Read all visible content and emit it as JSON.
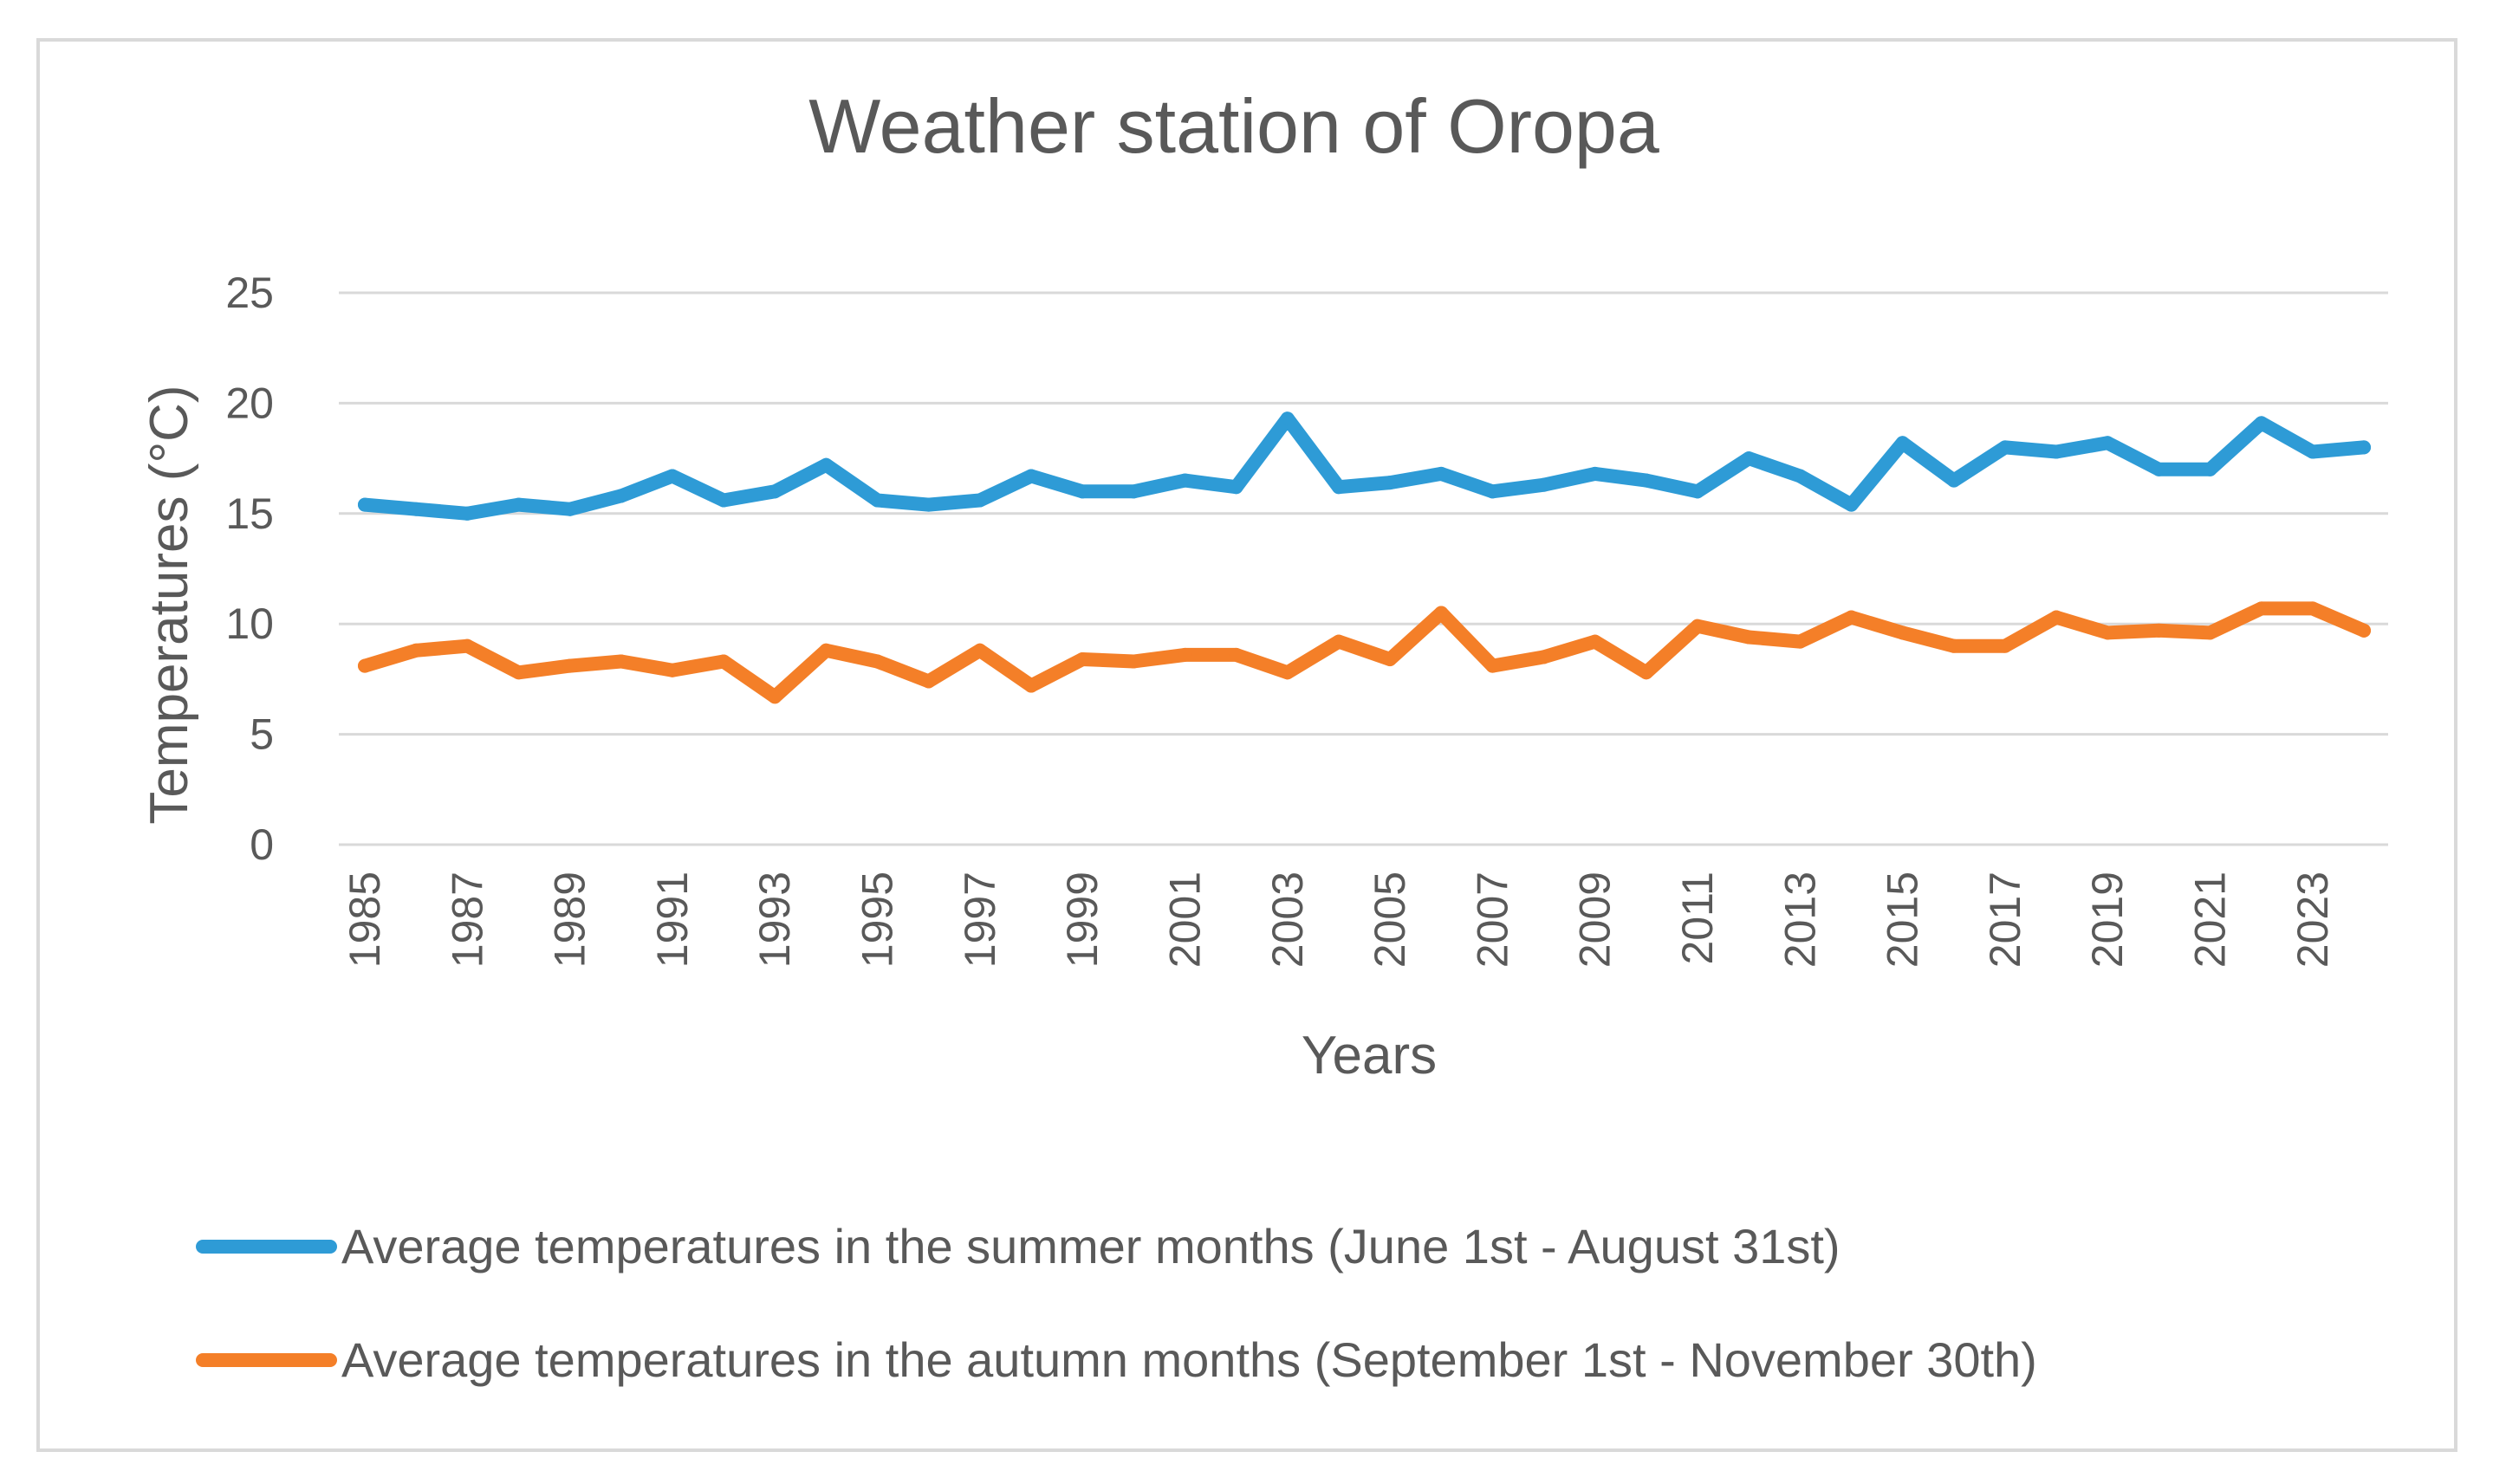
{
  "chart_data": {
    "type": "line",
    "title": "Weather station of Oropa",
    "xlabel": "Years",
    "ylabel": "Temperatures (°C)",
    "ylim": [
      0,
      25
    ],
    "yticks": [
      0,
      5,
      10,
      15,
      20,
      25
    ],
    "grid": true,
    "legend_position": "bottom",
    "x": [
      1985,
      1986,
      1987,
      1988,
      1989,
      1990,
      1991,
      1992,
      1993,
      1994,
      1995,
      1996,
      1997,
      1998,
      1999,
      2000,
      2001,
      2002,
      2003,
      2004,
      2005,
      2006,
      2007,
      2008,
      2009,
      2010,
      2011,
      2012,
      2013,
      2014,
      2015,
      2016,
      2017,
      2018,
      2019,
      2020,
      2021,
      2022,
      2023,
      2024
    ],
    "xtick_labels": [
      "1985",
      "1987",
      "1989",
      "1991",
      "1993",
      "1995",
      "1997",
      "1999",
      "2001",
      "2003",
      "2005",
      "2007",
      "2009",
      "2011",
      "2013",
      "2015",
      "2017",
      "2019",
      "2021",
      "2023"
    ],
    "series": [
      {
        "name": "Average temperatures in the summer months (June 1st - August 31st)",
        "color": "#2e9bd6",
        "values": [
          15.4,
          15.2,
          15.0,
          15.4,
          15.2,
          15.8,
          16.7,
          15.6,
          16.0,
          17.2,
          15.6,
          15.4,
          15.6,
          16.7,
          16.0,
          16.0,
          16.5,
          16.2,
          19.3,
          16.2,
          16.4,
          16.8,
          16.0,
          16.3,
          16.8,
          16.5,
          16.0,
          17.5,
          16.7,
          15.4,
          18.2,
          16.5,
          18.0,
          17.8,
          18.2,
          17.0,
          17.0,
          19.1,
          17.8,
          18.0
        ]
      },
      {
        "name": "Average temperatures in the autumn months (September 1st - November 30th)",
        "color": "#f47f28",
        "values": [
          8.1,
          8.8,
          9.0,
          7.8,
          8.1,
          8.3,
          7.9,
          8.3,
          6.7,
          8.8,
          8.3,
          7.4,
          8.8,
          7.2,
          8.4,
          8.3,
          8.6,
          8.6,
          7.8,
          9.2,
          8.4,
          10.5,
          8.1,
          8.5,
          9.2,
          7.8,
          9.9,
          9.4,
          9.2,
          10.3,
          9.6,
          9.0,
          9.0,
          10.3,
          9.6,
          9.7,
          9.6,
          10.7,
          10.7,
          9.7
        ]
      }
    ]
  }
}
